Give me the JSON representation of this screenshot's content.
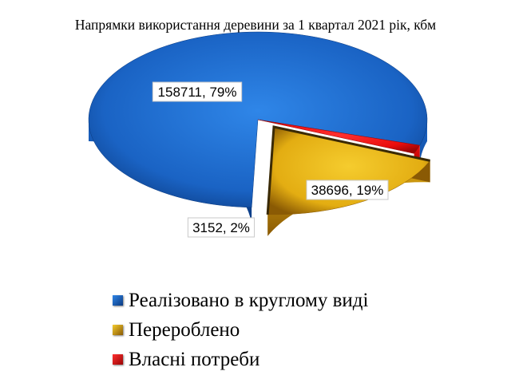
{
  "chart_data": {
    "type": "pie",
    "title": "Напрямки використання деревини за 1 квартал 2021 рік, кбм",
    "slices": [
      {
        "name": "Реалізовано в круглому виді",
        "value": 158711,
        "percent": 79,
        "label": "158711, 79%",
        "color": "#1a63c4",
        "dark": "#0b3a80",
        "light": "#2f86e8"
      },
      {
        "name": "Перероблено",
        "value": 38696,
        "percent": 19,
        "label": "38696, 19%",
        "color": "#e3ad12",
        "dark": "#8a5a04",
        "light": "#f5cc2e"
      },
      {
        "name": "Власні потреби",
        "value": 3152,
        "percent": 2,
        "label": "3152, 2%",
        "color": "#ea0d0d",
        "dark": "#9a0505",
        "light": "#ff3030"
      }
    ],
    "exploded": "Перероблено",
    "legend_position": "bottom-left"
  }
}
